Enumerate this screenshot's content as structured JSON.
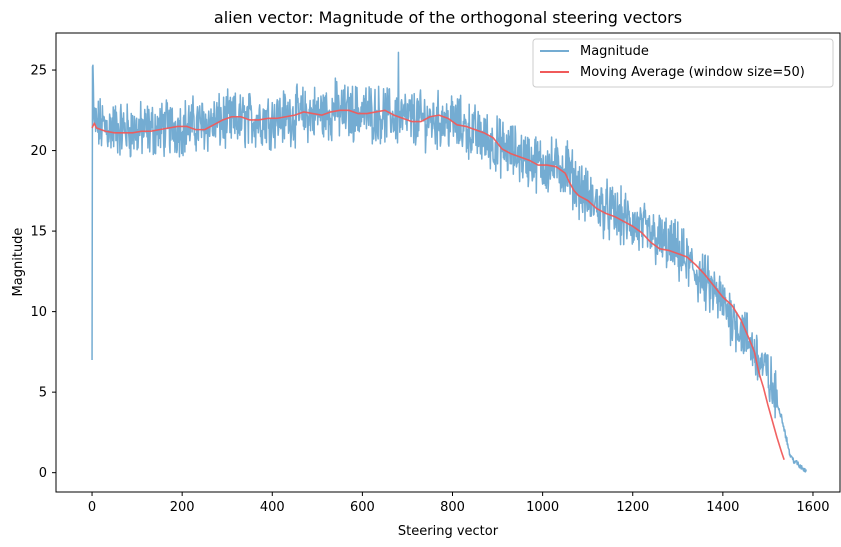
{
  "chart_data": {
    "type": "line",
    "title": "alien vector: Magnitude of the orthogonal steering vectors",
    "xlabel": "Steering vector",
    "ylabel": "Magnitude",
    "xlim": [
      -80,
      1660
    ],
    "ylim": [
      -1.2,
      27.3
    ],
    "xticks": [
      0,
      200,
      400,
      600,
      800,
      1000,
      1200,
      1400,
      1600
    ],
    "yticks": [
      0,
      5,
      10,
      15,
      20,
      25
    ],
    "xtick_labels": [
      "0",
      "200",
      "400",
      "600",
      "800",
      "1000",
      "1200",
      "1400",
      "1600"
    ],
    "ytick_labels": [
      "0",
      "5",
      "10",
      "15",
      "20",
      "25"
    ],
    "legend_position": "top-right",
    "series": [
      {
        "name": "Magnitude",
        "color": "#74acd2",
        "n_points": 1586,
        "start_values": [
          7.0,
          25.2,
          25.3,
          24.0,
          22.0
        ],
        "trend_x": [
          0,
          100,
          200,
          300,
          400,
          500,
          600,
          700,
          800,
          900,
          1000,
          1050,
          1100,
          1200,
          1300,
          1400,
          1450,
          1500,
          1530,
          1550,
          1570,
          1586
        ],
        "trend_y": [
          21.6,
          21.2,
          21.5,
          21.8,
          22.0,
          22.3,
          22.4,
          22.0,
          21.8,
          20.3,
          19.1,
          18.9,
          17.0,
          15.4,
          13.7,
          10.5,
          8.5,
          6.0,
          3.5,
          1.0,
          0.4,
          0.1
        ],
        "noise_amplitude": 1.4,
        "spikes": [
          [
            680,
            26.1
          ],
          [
            540,
            24.5
          ],
          [
            1055,
            20.6
          ]
        ],
        "note": "noisy raw magnitude per steering vector; ~1586 points"
      },
      {
        "name": "Moving Average (window size=50)",
        "color": "#f05a5a",
        "window": 50,
        "x": [
          0,
          5,
          10,
          20,
          30,
          50,
          70,
          90,
          110,
          130,
          150,
          170,
          190,
          210,
          230,
          250,
          270,
          290,
          310,
          330,
          350,
          370,
          390,
          410,
          430,
          450,
          470,
          490,
          510,
          530,
          550,
          570,
          590,
          610,
          630,
          650,
          670,
          690,
          710,
          730,
          750,
          770,
          790,
          810,
          830,
          850,
          870,
          890,
          910,
          930,
          950,
          970,
          990,
          1010,
          1030,
          1050,
          1060,
          1070,
          1080,
          1100,
          1120,
          1140,
          1160,
          1180,
          1200,
          1220,
          1240,
          1260,
          1280,
          1300,
          1320,
          1340,
          1360,
          1380,
          1400,
          1420,
          1440,
          1460,
          1470,
          1480,
          1490,
          1500,
          1510,
          1520,
          1530,
          1536
        ],
        "y": [
          21.4,
          21.7,
          21.4,
          21.3,
          21.2,
          21.1,
          21.1,
          21.1,
          21.2,
          21.2,
          21.3,
          21.4,
          21.5,
          21.5,
          21.3,
          21.3,
          21.6,
          21.9,
          22.1,
          22.1,
          21.9,
          21.9,
          22.0,
          22.0,
          22.1,
          22.2,
          22.4,
          22.3,
          22.2,
          22.4,
          22.5,
          22.5,
          22.3,
          22.3,
          22.4,
          22.5,
          22.2,
          22.0,
          21.8,
          21.8,
          22.1,
          22.2,
          22.0,
          21.6,
          21.5,
          21.3,
          21.1,
          20.8,
          20.1,
          19.8,
          19.6,
          19.4,
          19.1,
          19.1,
          19.0,
          18.6,
          18.0,
          17.5,
          17.2,
          16.9,
          16.4,
          16.1,
          15.9,
          15.6,
          15.3,
          14.9,
          14.3,
          13.9,
          13.8,
          13.6,
          13.4,
          12.9,
          12.3,
          11.6,
          10.9,
          10.4,
          9.5,
          8.2,
          7.5,
          6.2,
          5.3,
          4.2,
          3.2,
          2.2,
          1.3,
          0.8
        ]
      }
    ]
  }
}
